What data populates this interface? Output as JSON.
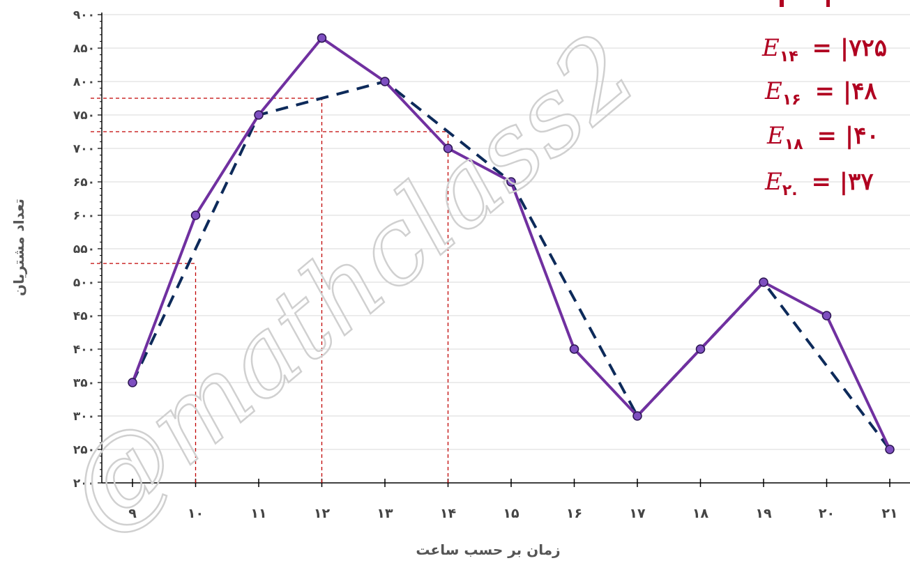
{
  "chart_data": {
    "type": "line",
    "title": "",
    "xlabel": "زمان بر حسب ساعت",
    "ylabel": "تعداد مشتریان",
    "x": [
      "۹",
      "۱۰",
      "۱۱",
      "۱۲",
      "۱۳",
      "۱۴",
      "۱۵",
      "۱۶",
      "۱۷",
      "۱۸",
      "۱۹",
      "۲۰",
      "۲۱"
    ],
    "x_values": [
      9,
      10,
      11,
      12,
      13,
      14,
      15,
      16,
      17,
      18,
      19,
      20,
      21
    ],
    "ylim": [
      200,
      900
    ],
    "y_ticks": [
      200,
      250,
      300,
      350,
      400,
      450,
      500,
      550,
      600,
      650,
      700,
      750,
      800,
      850,
      900
    ],
    "y_tick_labels": [
      "۲۰۰",
      "۲۵۰",
      "۳۰۰",
      "۳۵۰",
      "۴۰۰",
      "۴۵۰",
      "۵۰۰",
      "۵۵۰",
      "۶۰۰",
      "۶۵۰",
      "۷۰۰",
      "۷۵۰",
      "۸۰۰",
      "۸۵۰",
      "۹۰۰"
    ],
    "grid": true,
    "series": [
      {
        "style": "solid",
        "color": "#7030a0",
        "x": [
          9,
          10,
          11,
          12,
          13,
          14,
          15,
          16,
          17,
          18,
          19,
          20,
          21
        ],
        "values": [
          350,
          600,
          750,
          865,
          800,
          700,
          650,
          400,
          300,
          400,
          500,
          450,
          250
        ]
      },
      {
        "style": "dashed",
        "color": "#0d2a5a",
        "x": [
          9,
          11,
          13,
          15,
          17,
          19,
          21
        ],
        "values": [
          350,
          750,
          800,
          650,
          300,
          500,
          250
        ]
      }
    ],
    "reference_points": [
      {
        "x": 10,
        "y": 528
      },
      {
        "x": 12,
        "y": 775
      },
      {
        "x": 14,
        "y": 725
      }
    ],
    "annotations": [
      {
        "symbol": "E",
        "sub": "۱۴",
        "text": "= |۷۲۵"
      },
      {
        "symbol": "E",
        "sub": "۱۶",
        "text": "= |۴۸"
      },
      {
        "symbol": "E",
        "sub": "۱۸",
        "text": "= |۴۰"
      },
      {
        "symbol": "E",
        "sub": "۲.",
        "text": "= |۳۷"
      }
    ],
    "watermark": "@mathclass2"
  },
  "colors": {
    "solid": "#7030a0",
    "dashed": "#0d2a5a",
    "reference": "#c00000",
    "annotation": "#b00020"
  }
}
